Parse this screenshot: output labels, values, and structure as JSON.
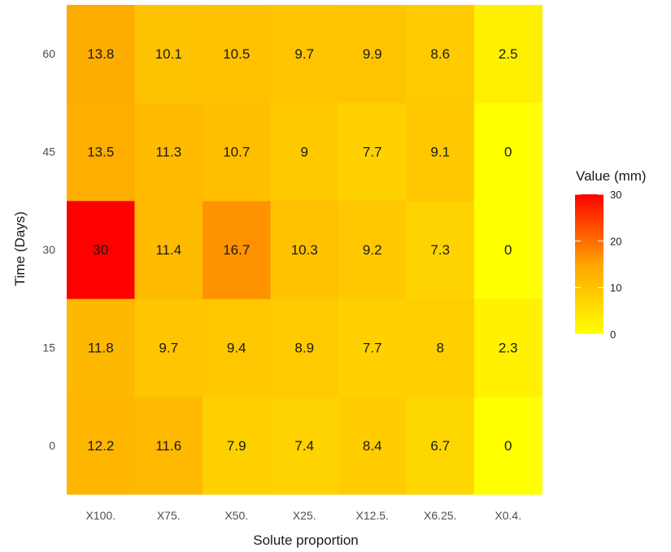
{
  "chart_data": {
    "type": "heatmap",
    "title": "",
    "xlabel": "Solute proportion",
    "ylabel": "Time (Days)",
    "x_categories": [
      "X100.",
      "X75.",
      "X50.",
      "X25.",
      "X12.5.",
      "X6.25.",
      "X0.4."
    ],
    "y_categories": [
      "0",
      "15",
      "30",
      "45",
      "60"
    ],
    "values": [
      [
        12.2,
        11.6,
        7.9,
        7.4,
        8.4,
        6.7,
        0
      ],
      [
        11.8,
        9.7,
        9.4,
        8.9,
        7.7,
        8,
        2.3
      ],
      [
        30,
        11.4,
        16.7,
        10.3,
        9.2,
        7.3,
        0
      ],
      [
        13.5,
        11.3,
        10.7,
        9,
        7.7,
        9.1,
        0
      ],
      [
        13.8,
        10.1,
        10.5,
        9.7,
        9.9,
        8.6,
        2.5
      ]
    ],
    "value_labels": [
      [
        "12.2",
        "11.6",
        "7.9",
        "7.4",
        "8.4",
        "6.7",
        "0"
      ],
      [
        "11.8",
        "9.7",
        "9.4",
        "8.9",
        "7.7",
        "8",
        "2.3"
      ],
      [
        "30",
        "11.4",
        "16.7",
        "10.3",
        "9.2",
        "7.3",
        "0"
      ],
      [
        "13.5",
        "11.3",
        "10.7",
        "9",
        "7.7",
        "9.1",
        "0"
      ],
      [
        "13.8",
        "10.1",
        "10.5",
        "9.7",
        "9.9",
        "8.6",
        "2.5"
      ]
    ],
    "color_scale": {
      "low": "#ffff00",
      "mid": "#ffa500",
      "high": "#ff0000",
      "limits": [
        0,
        30
      ]
    },
    "legend": {
      "title": "Value (mm)",
      "ticks": [
        0,
        10,
        20,
        30
      ],
      "placement": "right"
    },
    "grid": true
  }
}
